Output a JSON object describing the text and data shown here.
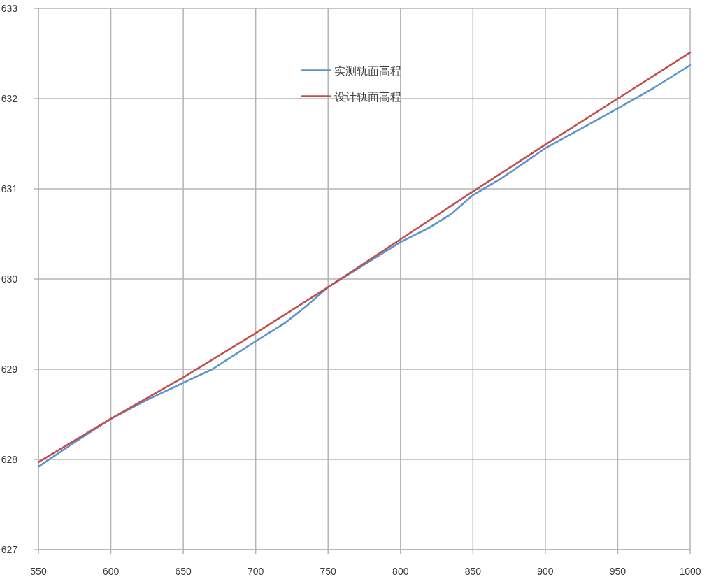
{
  "chart_data": {
    "type": "line",
    "series": [
      {
        "name": "实测轨面高程",
        "color": "#5b93d3",
        "x": [
          550,
          575,
          600,
          625,
          650,
          670,
          700,
          720,
          735,
          750,
          775,
          800,
          820,
          835,
          850,
          870,
          900,
          925,
          950,
          975,
          1000
        ],
        "values": [
          627.92,
          628.19,
          628.45,
          628.66,
          628.85,
          629.0,
          629.31,
          629.51,
          629.7,
          629.91,
          630.16,
          630.41,
          630.57,
          630.72,
          630.93,
          631.12,
          631.45,
          631.67,
          631.89,
          632.12,
          632.37
        ]
      },
      {
        "name": "设计轨面高程",
        "color": "#c0504d",
        "x": [
          550,
          600,
          650,
          700,
          750,
          800,
          850,
          900,
          950,
          1000
        ],
        "values": [
          627.97,
          628.45,
          628.91,
          629.4,
          629.91,
          630.44,
          630.97,
          631.49,
          632.0,
          632.51
        ]
      }
    ],
    "xlim": [
      550,
      1000
    ],
    "ylim": [
      627,
      633
    ],
    "xticks": [
      550,
      600,
      650,
      700,
      750,
      800,
      850,
      900,
      950,
      1000
    ],
    "yticks": [
      627,
      628,
      629,
      630,
      631,
      632,
      633
    ],
    "grid": true,
    "legend": "top",
    "line_style": "solid"
  }
}
